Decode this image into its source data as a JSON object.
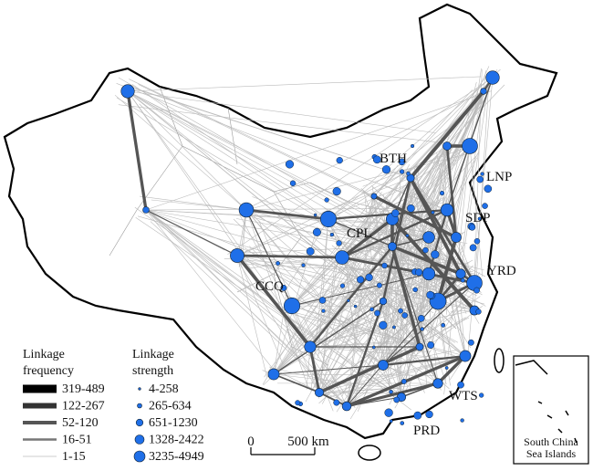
{
  "map": {
    "regions": [
      "BTH",
      "LNP",
      "SDP",
      "CPL",
      "YRD",
      "CCQ",
      "WTS",
      "PRD"
    ],
    "legend": {
      "frequency": {
        "title": [
          "Linkage",
          "frequency"
        ],
        "items": [
          "319-489",
          "122-267",
          "52-120",
          "16-51",
          "1-15"
        ]
      },
      "strength": {
        "title": [
          "Linkage",
          "strength"
        ],
        "items": [
          "4-258",
          "265-634",
          "651-1230",
          "1328-2422",
          "3235-4949"
        ]
      }
    },
    "scale": {
      "zero": "0",
      "distance": "500 km"
    },
    "inset": {
      "title": [
        "South China",
        "Sea Islands"
      ]
    }
  }
}
